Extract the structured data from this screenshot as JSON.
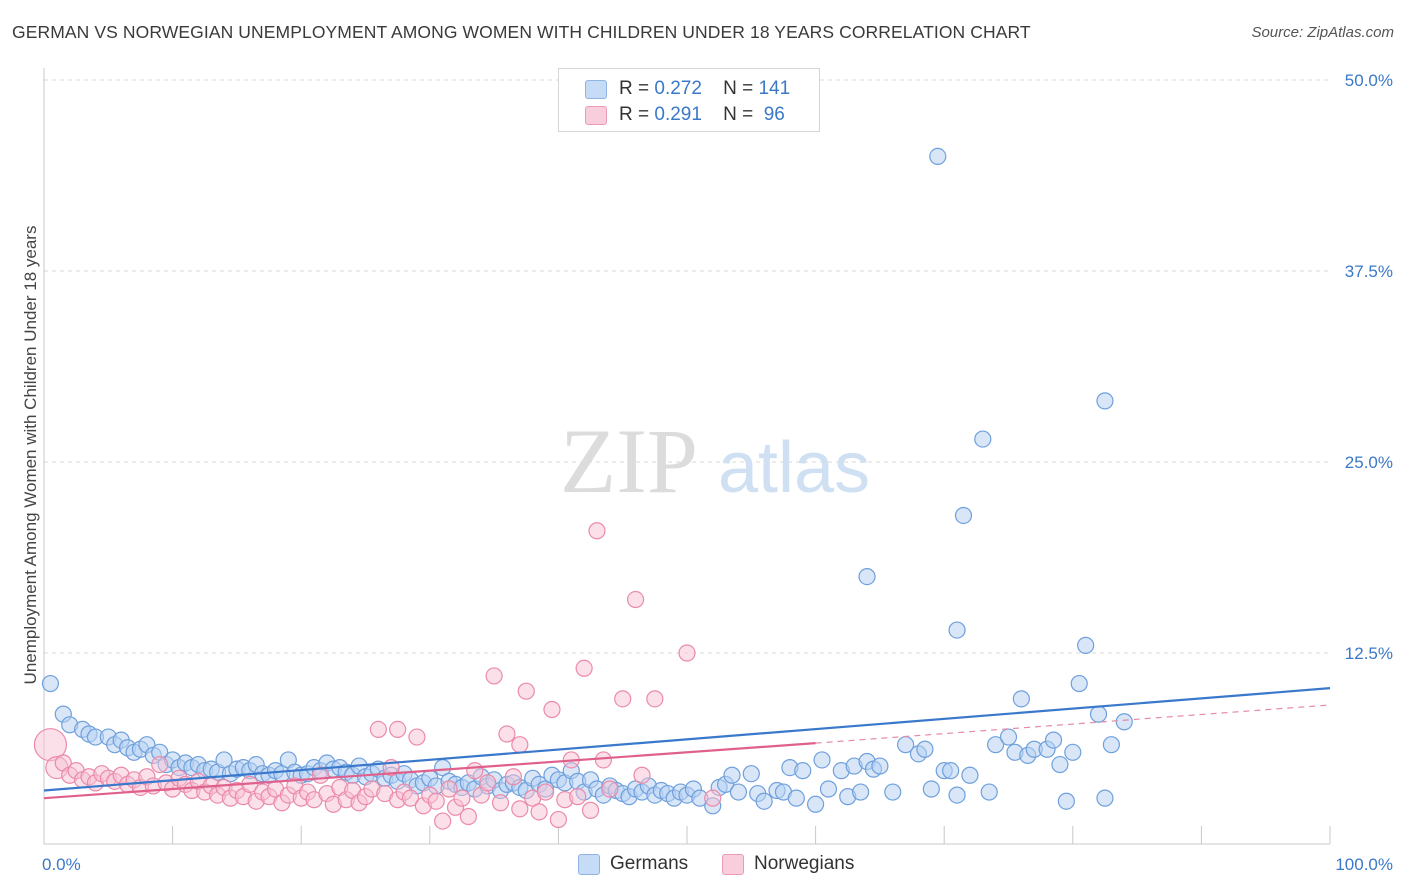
{
  "title": "GERMAN VS NORWEGIAN UNEMPLOYMENT AMONG WOMEN WITH CHILDREN UNDER 18 YEARS CORRELATION CHART",
  "source": "Source: ZipAtlas.com",
  "watermark": {
    "zip": "ZIP",
    "atlas": "atlas"
  },
  "legend": [
    {
      "r_label": "R =",
      "r_value": "0.272",
      "n_label": "N =",
      "n_value": "141",
      "color": "#a9c8f0"
    },
    {
      "r_label": "R =",
      "r_value": "0.291",
      "n_label": "N =",
      "n_value": "96",
      "color": "#f5b8cb"
    }
  ],
  "bottom_legend": [
    {
      "label": "Germans",
      "color": "#a9c8f0"
    },
    {
      "label": "Norwegians",
      "color": "#f5b8cb"
    }
  ],
  "chart_data": {
    "type": "scatter",
    "title": "GERMAN VS NORWEGIAN UNEMPLOYMENT AMONG WOMEN WITH CHILDREN UNDER 18 YEARS CORRELATION CHART",
    "ylabel": "Unemployment Among Women with Children Under 18 years",
    "xlabel": "",
    "xlim": [
      0,
      100
    ],
    "ylim": [
      0,
      50
    ],
    "x_tick_labels": [
      "0.0%",
      "100.0%"
    ],
    "y_ticks": [
      12.5,
      25.0,
      37.5,
      50.0
    ],
    "y_tick_labels": [
      "12.5%",
      "25.0%",
      "37.5%",
      "50.0%"
    ],
    "grid": true,
    "legend_placement": "top-center",
    "series": [
      {
        "name": "Germans",
        "color": "#6fa0dc",
        "trend": {
          "x": [
            0,
            100
          ],
          "y": [
            3.5,
            10.2
          ],
          "color": "#3a78cc"
        },
        "points": [
          [
            0.5,
            10.5
          ],
          [
            1.5,
            8.5
          ],
          [
            2.0,
            7.8
          ],
          [
            3.0,
            7.5
          ],
          [
            3.5,
            7.2
          ],
          [
            4.0,
            7.0
          ],
          [
            5.0,
            7.0
          ],
          [
            5.5,
            6.5
          ],
          [
            6.0,
            6.8
          ],
          [
            6.5,
            6.3
          ],
          [
            7.0,
            6.0
          ],
          [
            7.5,
            6.2
          ],
          [
            8.0,
            6.5
          ],
          [
            8.5,
            5.8
          ],
          [
            9.0,
            6.0
          ],
          [
            9.5,
            5.2
          ],
          [
            10.0,
            5.5
          ],
          [
            10.5,
            5.0
          ],
          [
            11.0,
            5.3
          ],
          [
            11.5,
            5.0
          ],
          [
            12.0,
            5.2
          ],
          [
            12.5,
            4.8
          ],
          [
            13.0,
            4.9
          ],
          [
            13.5,
            4.7
          ],
          [
            14.0,
            5.5
          ],
          [
            14.5,
            4.6
          ],
          [
            15.0,
            4.9
          ],
          [
            15.5,
            5.0
          ],
          [
            16.0,
            4.8
          ],
          [
            16.5,
            5.2
          ],
          [
            17.0,
            4.6
          ],
          [
            17.5,
            4.5
          ],
          [
            18.0,
            4.8
          ],
          [
            18.5,
            4.6
          ],
          [
            19.0,
            5.5
          ],
          [
            19.5,
            4.7
          ],
          [
            20.0,
            4.5
          ],
          [
            20.5,
            4.6
          ],
          [
            21.0,
            5.0
          ],
          [
            21.5,
            4.8
          ],
          [
            22.0,
            5.3
          ],
          [
            22.5,
            4.9
          ],
          [
            23.0,
            5.0
          ],
          [
            23.5,
            4.7
          ],
          [
            24.0,
            4.5
          ],
          [
            24.5,
            5.1
          ],
          [
            25.0,
            4.4
          ],
          [
            25.5,
            4.6
          ],
          [
            26.0,
            4.9
          ],
          [
            26.5,
            4.3
          ],
          [
            27.0,
            4.5
          ],
          [
            27.5,
            4.1
          ],
          [
            28.0,
            4.6
          ],
          [
            28.5,
            4.2
          ],
          [
            29.0,
            3.8
          ],
          [
            29.5,
            4.0
          ],
          [
            30.0,
            4.3
          ],
          [
            30.5,
            3.8
          ],
          [
            31.0,
            5.0
          ],
          [
            31.5,
            4.1
          ],
          [
            32.0,
            3.9
          ],
          [
            32.5,
            3.7
          ],
          [
            33.0,
            4.0
          ],
          [
            33.5,
            3.6
          ],
          [
            34.0,
            4.4
          ],
          [
            34.5,
            3.8
          ],
          [
            35.0,
            4.2
          ],
          [
            35.5,
            3.5
          ],
          [
            36.0,
            3.9
          ],
          [
            36.5,
            4.0
          ],
          [
            37.0,
            3.7
          ],
          [
            37.5,
            3.5
          ],
          [
            38.0,
            4.3
          ],
          [
            38.5,
            3.9
          ],
          [
            39.0,
            3.6
          ],
          [
            39.5,
            4.5
          ],
          [
            40.0,
            4.2
          ],
          [
            40.5,
            4.0
          ],
          [
            41.0,
            4.8
          ],
          [
            41.5,
            4.1
          ],
          [
            42.0,
            3.4
          ],
          [
            42.5,
            4.2
          ],
          [
            43.0,
            3.6
          ],
          [
            43.5,
            3.2
          ],
          [
            44.0,
            3.8
          ],
          [
            44.5,
            3.5
          ],
          [
            45.0,
            3.3
          ],
          [
            45.5,
            3.1
          ],
          [
            46.0,
            3.6
          ],
          [
            46.5,
            3.4
          ],
          [
            47.0,
            3.8
          ],
          [
            47.5,
            3.2
          ],
          [
            48.0,
            3.5
          ],
          [
            48.5,
            3.3
          ],
          [
            49.0,
            3.0
          ],
          [
            49.5,
            3.4
          ],
          [
            50.0,
            3.2
          ],
          [
            50.5,
            3.6
          ],
          [
            51.0,
            3.0
          ],
          [
            52.0,
            2.5
          ],
          [
            52.5,
            3.7
          ],
          [
            53.0,
            3.9
          ],
          [
            53.5,
            4.5
          ],
          [
            54.0,
            3.4
          ],
          [
            55.0,
            4.6
          ],
          [
            55.5,
            3.3
          ],
          [
            56.0,
            2.8
          ],
          [
            57.0,
            3.5
          ],
          [
            57.5,
            3.4
          ],
          [
            58.0,
            5.0
          ],
          [
            58.5,
            3.0
          ],
          [
            59.0,
            4.8
          ],
          [
            60.0,
            2.6
          ],
          [
            60.5,
            5.5
          ],
          [
            61.0,
            3.6
          ],
          [
            62.0,
            4.8
          ],
          [
            62.5,
            3.1
          ],
          [
            63.0,
            5.1
          ],
          [
            63.5,
            3.4
          ],
          [
            64.0,
            5.4
          ],
          [
            64.5,
            4.9
          ],
          [
            65.0,
            5.1
          ],
          [
            66.0,
            3.4
          ],
          [
            67.0,
            6.5
          ],
          [
            68.0,
            5.9
          ],
          [
            68.5,
            6.2
          ],
          [
            69.0,
            3.6
          ],
          [
            70.0,
            4.8
          ],
          [
            70.5,
            4.8
          ],
          [
            71.0,
            3.2
          ],
          [
            72.0,
            4.5
          ],
          [
            73.5,
            3.4
          ],
          [
            74.0,
            6.5
          ],
          [
            75.0,
            7.0
          ],
          [
            75.5,
            6.0
          ],
          [
            76.0,
            9.5
          ],
          [
            76.5,
            5.8
          ],
          [
            77.0,
            6.2
          ],
          [
            78.0,
            6.2
          ],
          [
            78.5,
            6.8
          ],
          [
            79.0,
            5.2
          ],
          [
            79.5,
            2.8
          ],
          [
            80.0,
            6.0
          ],
          [
            80.5,
            10.5
          ],
          [
            81.0,
            13.0
          ],
          [
            82.0,
            8.5
          ],
          [
            82.5,
            3.0
          ],
          [
            83.0,
            6.5
          ],
          [
            84.0,
            8.0
          ],
          [
            64.0,
            17.5
          ],
          [
            71.0,
            14.0
          ]
        ],
        "outliers": [
          [
            69.5,
            45.0
          ],
          [
            82.5,
            29.0
          ],
          [
            73.0,
            26.5
          ],
          [
            71.5,
            21.5
          ]
        ]
      },
      {
        "name": "Norwegians",
        "color": "#eb8aaa",
        "trend": {
          "x": [
            0,
            60
          ],
          "y": [
            3.0,
            6.6
          ],
          "color": "#e0608c"
        },
        "trend_dashed": {
          "x": [
            60,
            100
          ],
          "y": [
            6.6,
            9.1
          ],
          "color": "#e58aa8"
        },
        "points": [
          [
            0.5,
            6.5
          ],
          [
            1.0,
            5.0
          ],
          [
            1.5,
            5.3
          ],
          [
            2.0,
            4.5
          ],
          [
            2.5,
            4.8
          ],
          [
            3.0,
            4.2
          ],
          [
            3.5,
            4.4
          ],
          [
            4.0,
            4.0
          ],
          [
            4.5,
            4.6
          ],
          [
            5.0,
            4.3
          ],
          [
            5.5,
            4.1
          ],
          [
            6.0,
            4.5
          ],
          [
            6.5,
            3.9
          ],
          [
            7.0,
            4.2
          ],
          [
            7.5,
            3.7
          ],
          [
            8.0,
            4.4
          ],
          [
            8.5,
            3.8
          ],
          [
            9.0,
            5.2
          ],
          [
            9.5,
            4.0
          ],
          [
            10.0,
            3.6
          ],
          [
            10.5,
            4.3
          ],
          [
            11.0,
            3.9
          ],
          [
            11.5,
            3.5
          ],
          [
            12.0,
            4.1
          ],
          [
            12.5,
            3.4
          ],
          [
            13.0,
            3.8
          ],
          [
            13.5,
            3.2
          ],
          [
            14.0,
            3.7
          ],
          [
            14.5,
            3.0
          ],
          [
            15.0,
            3.5
          ],
          [
            15.5,
            3.1
          ],
          [
            16.0,
            3.9
          ],
          [
            16.5,
            2.8
          ],
          [
            17.0,
            3.4
          ],
          [
            17.5,
            3.1
          ],
          [
            18.0,
            3.6
          ],
          [
            18.5,
            2.7
          ],
          [
            19.0,
            3.2
          ],
          [
            19.5,
            3.8
          ],
          [
            20.0,
            3.0
          ],
          [
            20.5,
            3.4
          ],
          [
            21.0,
            2.9
          ],
          [
            21.5,
            4.5
          ],
          [
            22.0,
            3.3
          ],
          [
            22.5,
            2.6
          ],
          [
            23.0,
            3.7
          ],
          [
            23.5,
            2.9
          ],
          [
            24.0,
            3.5
          ],
          [
            24.5,
            2.7
          ],
          [
            25.0,
            3.1
          ],
          [
            25.5,
            3.6
          ],
          [
            26.0,
            7.5
          ],
          [
            26.5,
            3.3
          ],
          [
            27.0,
            5.0
          ],
          [
            27.5,
            2.9
          ],
          [
            28.0,
            3.4
          ],
          [
            28.5,
            3.0
          ],
          [
            29.0,
            7.0
          ],
          [
            29.5,
            2.5
          ],
          [
            30.0,
            3.2
          ],
          [
            30.5,
            2.8
          ],
          [
            31.0,
            1.5
          ],
          [
            31.5,
            3.6
          ],
          [
            32.0,
            2.4
          ],
          [
            32.5,
            3.0
          ],
          [
            33.0,
            1.8
          ],
          [
            33.5,
            4.8
          ],
          [
            34.0,
            3.2
          ],
          [
            34.5,
            4.0
          ],
          [
            35.0,
            11.0
          ],
          [
            35.5,
            2.7
          ],
          [
            36.0,
            7.2
          ],
          [
            36.5,
            4.4
          ],
          [
            37.0,
            2.3
          ],
          [
            37.5,
            10.0
          ],
          [
            38.0,
            3.0
          ],
          [
            38.5,
            2.1
          ],
          [
            39.0,
            3.4
          ],
          [
            39.5,
            8.8
          ],
          [
            40.0,
            1.6
          ],
          [
            40.5,
            2.9
          ],
          [
            41.0,
            5.5
          ],
          [
            41.5,
            3.1
          ],
          [
            42.0,
            11.5
          ],
          [
            42.5,
            2.2
          ],
          [
            43.0,
            20.5
          ],
          [
            43.5,
            5.5
          ],
          [
            44.0,
            3.6
          ],
          [
            45.0,
            9.5
          ],
          [
            46.0,
            16.0
          ],
          [
            46.5,
            4.5
          ],
          [
            47.5,
            9.5
          ],
          [
            50.0,
            12.5
          ],
          [
            52.0,
            3.0
          ],
          [
            27.5,
            7.5
          ],
          [
            37.0,
            6.5
          ]
        ]
      }
    ]
  }
}
